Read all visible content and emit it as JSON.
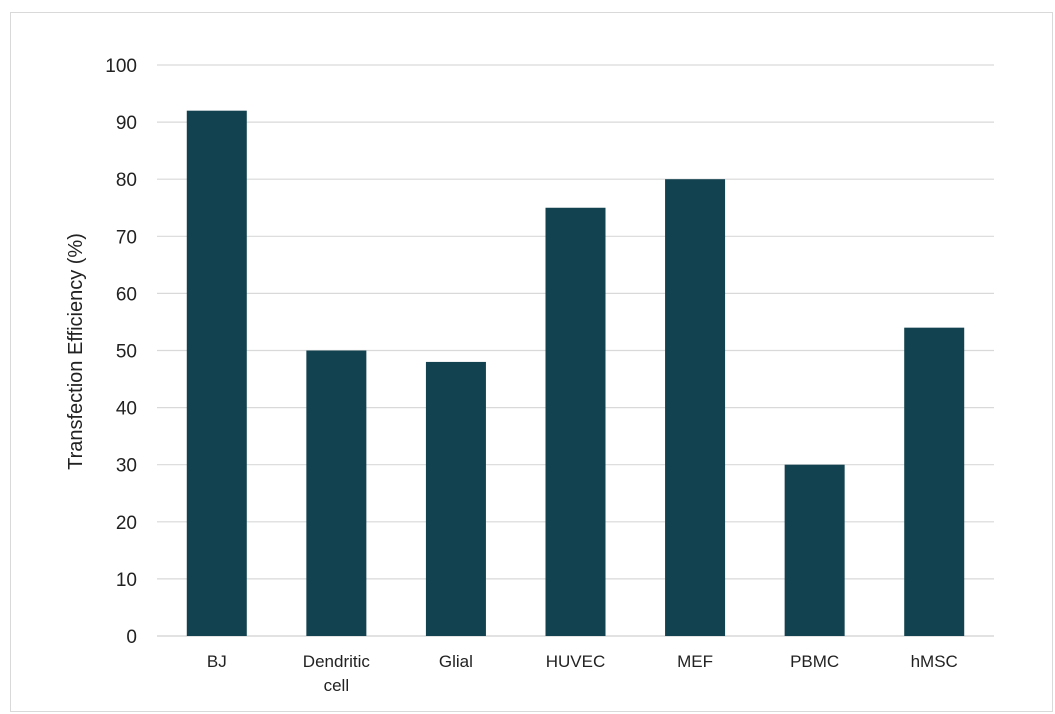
{
  "chart_data": {
    "type": "bar",
    "title": "",
    "xlabel": "",
    "ylabel": "Transfection Efficiency (%)",
    "ylim": [
      0,
      100
    ],
    "yticks": [
      0,
      10,
      20,
      30,
      40,
      50,
      60,
      70,
      80,
      90,
      100
    ],
    "categories": [
      "BJ",
      "Dendritic cell",
      "Glial",
      "HUVEC",
      "MEF",
      "PBMC",
      "hMSC"
    ],
    "category_lines": [
      [
        "BJ"
      ],
      [
        "Dendritic",
        "cell"
      ],
      [
        "Glial"
      ],
      [
        "HUVEC"
      ],
      [
        "MEF"
      ],
      [
        "PBMC"
      ],
      [
        "hMSC"
      ]
    ],
    "values": [
      92,
      50,
      48,
      75,
      80,
      30,
      54
    ],
    "grid": true,
    "legend": "none",
    "bar_color": "#12414f",
    "grid_color": "#d9d9d9"
  }
}
